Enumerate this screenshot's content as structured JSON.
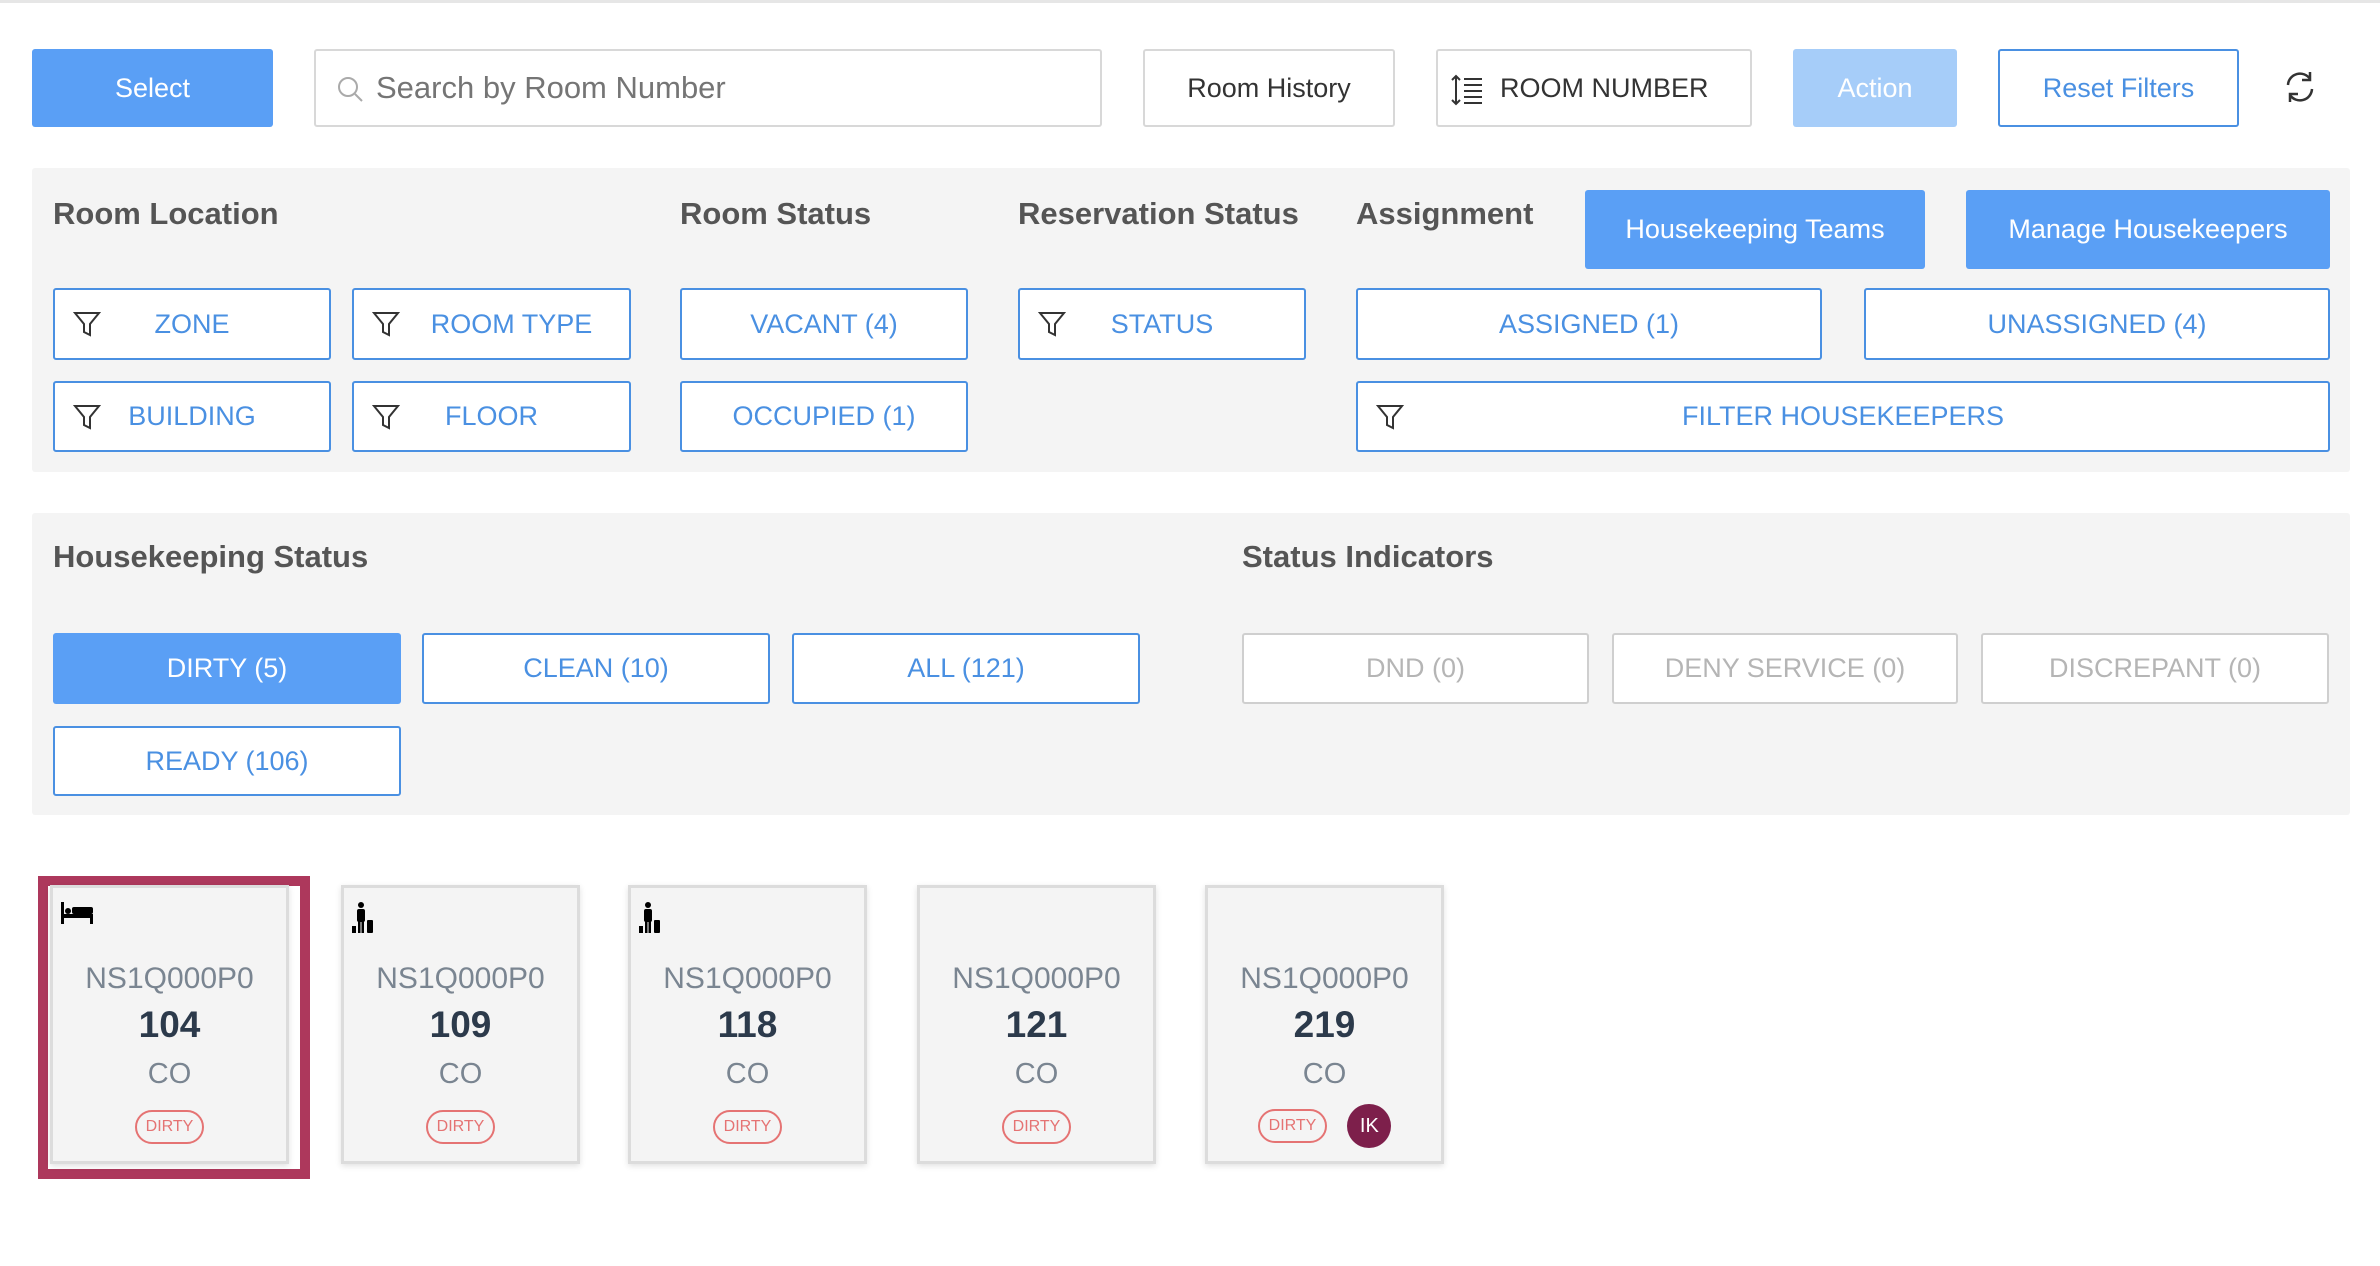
{
  "toolbar": {
    "select": "Select",
    "search_placeholder": "Search by Room Number",
    "room_history": "Room History",
    "sort": "ROOM NUMBER",
    "action": "Action",
    "reset": "Reset Filters"
  },
  "filters": {
    "room_location": {
      "title": "Room Location",
      "zone": "ZONE",
      "room_type": "ROOM TYPE",
      "building": "BUILDING",
      "floor": "FLOOR"
    },
    "room_status": {
      "title": "Room Status",
      "vacant": "VACANT (4)",
      "occupied": "OCCUPIED (1)"
    },
    "reservation_status": {
      "title": "Reservation Status",
      "status": "STATUS"
    },
    "assignment": {
      "title": "Assignment",
      "teams": "Housekeeping Teams",
      "manage": "Manage Housekeepers",
      "assigned": "ASSIGNED (1)",
      "unassigned": "UNASSIGNED (4)",
      "filter": "FILTER HOUSEKEEPERS"
    }
  },
  "housekeeping": {
    "title": "Housekeeping Status",
    "dirty": "DIRTY (5)",
    "clean": "CLEAN (10)",
    "all": "ALL (121)",
    "ready": "READY (106)"
  },
  "indicators": {
    "title": "Status Indicators",
    "dnd": "DND (0)",
    "deny": "DENY SERVICE (0)",
    "discrepant": "DISCREPANT (0)"
  },
  "colors": {
    "accent": "#5a9ff5",
    "selected": "#ad385c",
    "dirty": "#e57373",
    "avatar": "#7d1f4b"
  },
  "rooms": [
    {
      "icon": "bed-icon",
      "code": "NS1Q000P0",
      "number": "104",
      "status": "CO",
      "hk": "DIRTY",
      "selected": true
    },
    {
      "icon": "traveler-icon",
      "code": "NS1Q000P0",
      "number": "109",
      "status": "CO",
      "hk": "DIRTY"
    },
    {
      "icon": "traveler-icon",
      "code": "NS1Q000P0",
      "number": "118",
      "status": "CO",
      "hk": "DIRTY"
    },
    {
      "code": "NS1Q000P0",
      "number": "121",
      "status": "CO",
      "hk": "DIRTY"
    },
    {
      "code": "NS1Q000P0",
      "number": "219",
      "status": "CO",
      "hk": "DIRTY",
      "assignee": "IK"
    }
  ]
}
